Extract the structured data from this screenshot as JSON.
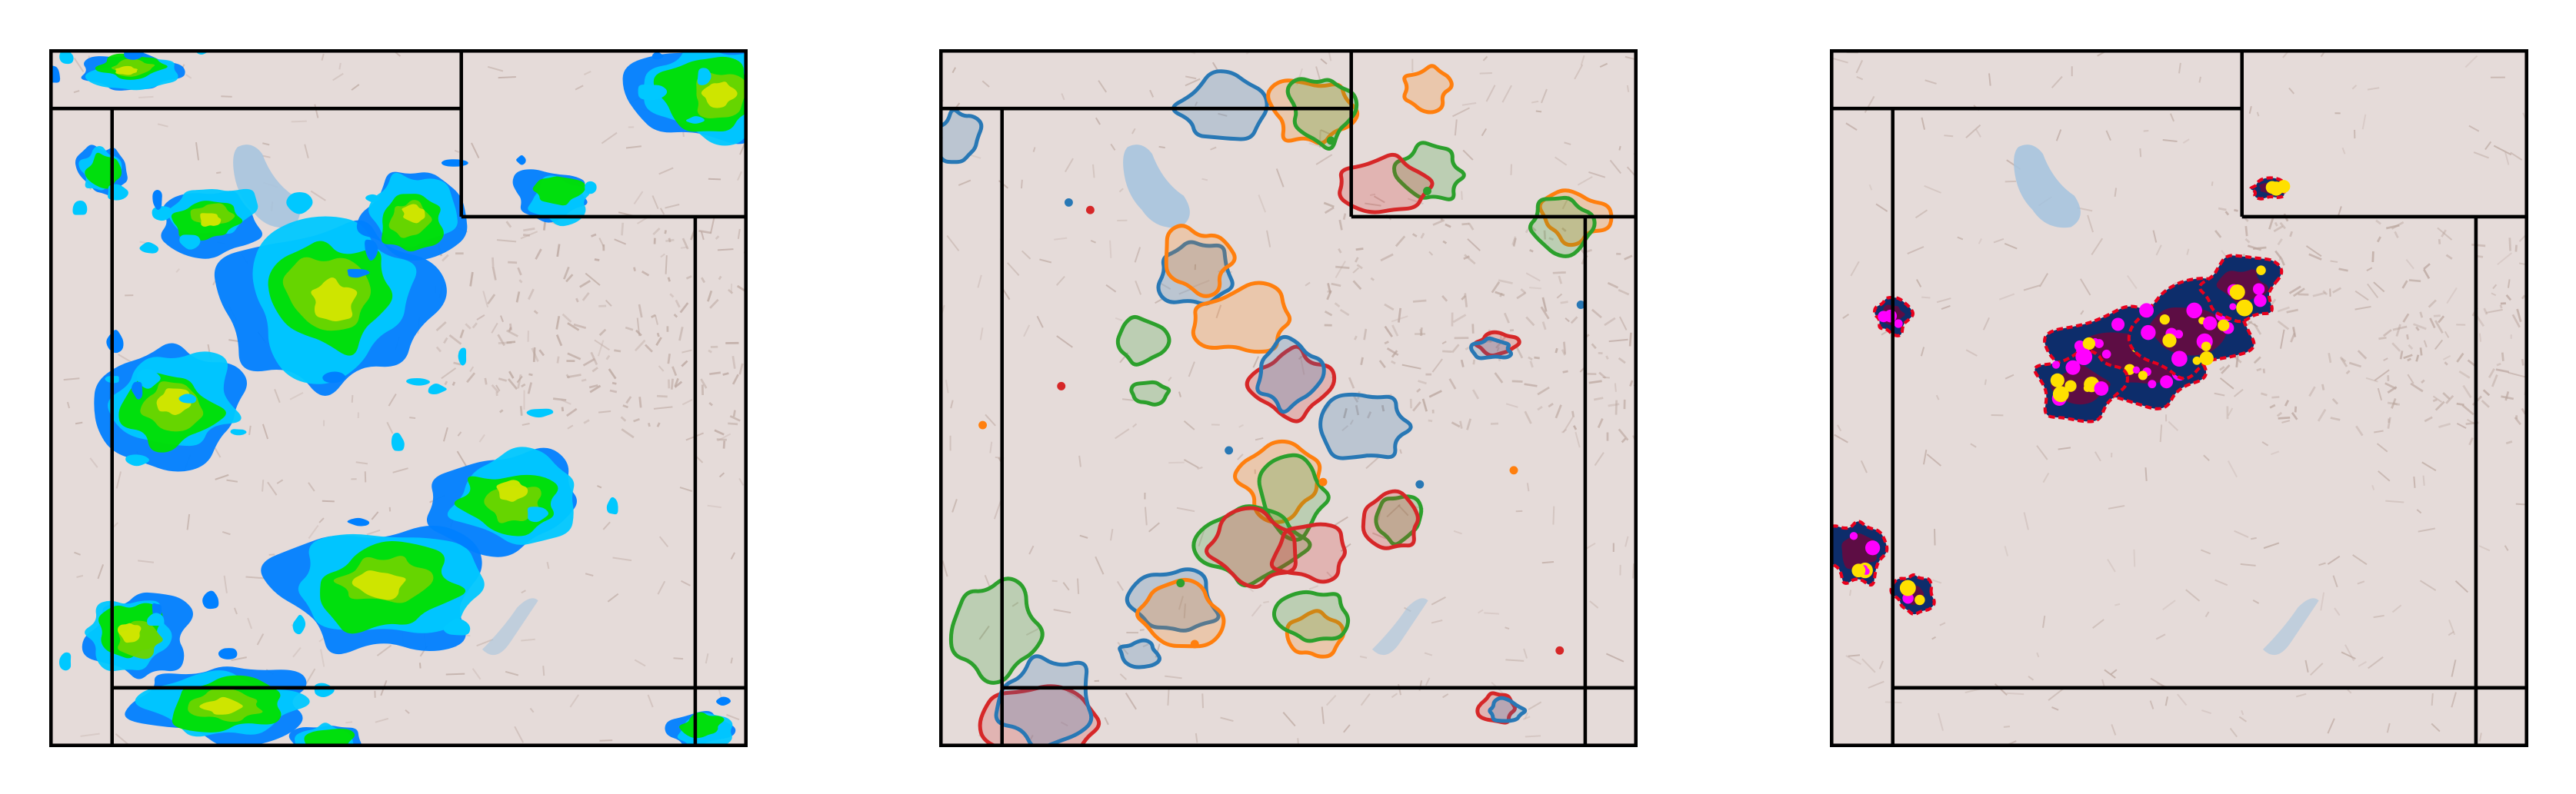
{
  "figure": {
    "panel_count": 3,
    "background_color": "#ffffff"
  },
  "basemap": {
    "land_color": "#e5dbd9",
    "relief_color": "#b8a39b",
    "water_color": "#a7c4de",
    "border_color": "#000000"
  },
  "panels": [
    {
      "id": "radar-reflectivity",
      "legend": "none",
      "colors": {
        "low": "#0080ff",
        "light": "#00c8ff",
        "moderate": "#00e000",
        "strong": "#6cd400",
        "heavy": "#d4e600"
      }
    },
    {
      "id": "ensemble-contours",
      "legend": "none",
      "colors": [
        "#2878b5",
        "#ff7f0e",
        "#2ca02c",
        "#d62728"
      ]
    },
    {
      "id": "objects-tracks",
      "legend": "none",
      "colors": {
        "object_fill": "#0d2d6b",
        "object_core": "#800033",
        "outline": "#e8001c",
        "points_primary": "#ff00ff",
        "points_secondary": "#ffe000"
      }
    }
  ]
}
